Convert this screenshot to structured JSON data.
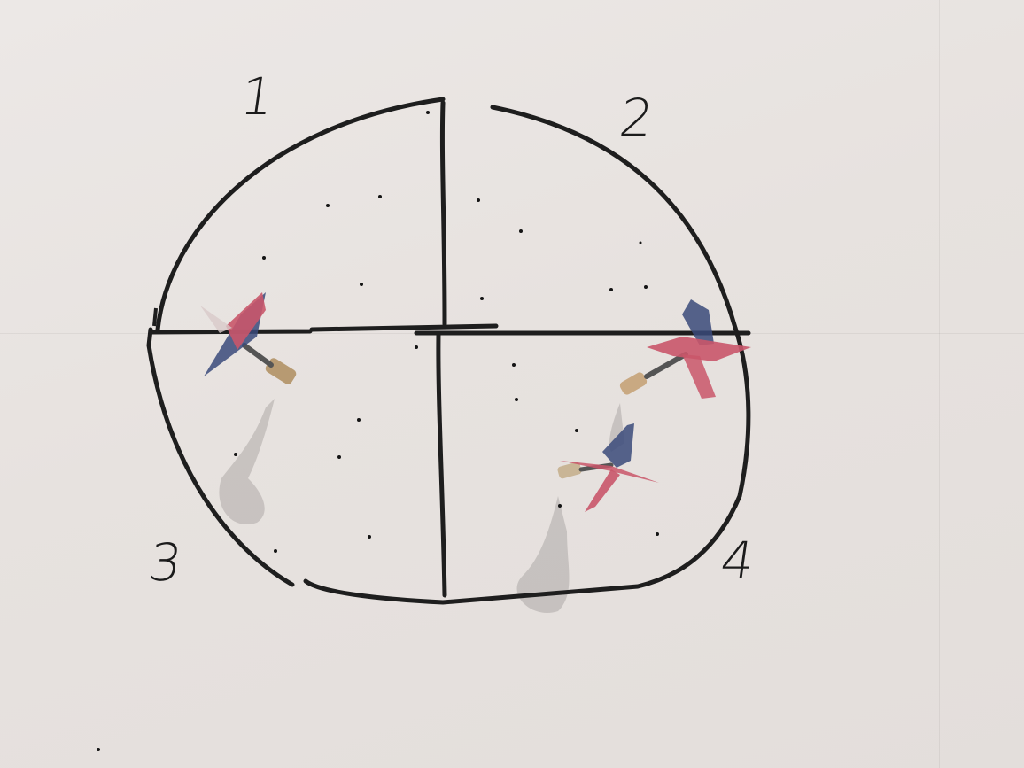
{
  "scene": {
    "description_items": [
      "paper-target",
      "hand-drawn-circle",
      "quadrant-lines",
      "darts"
    ]
  },
  "labels": {
    "q1": "1",
    "q2": "2",
    "q3": "3",
    "q4": "4"
  },
  "colors": {
    "paper": "#e9e4e1",
    "ink": "#1e1e1e",
    "flight_red": "#c9566a",
    "flight_blue": "#3a4a7a"
  },
  "darts": [
    {
      "name": "dart-left"
    },
    {
      "name": "dart-right"
    },
    {
      "name": "dart-lower-right"
    }
  ]
}
